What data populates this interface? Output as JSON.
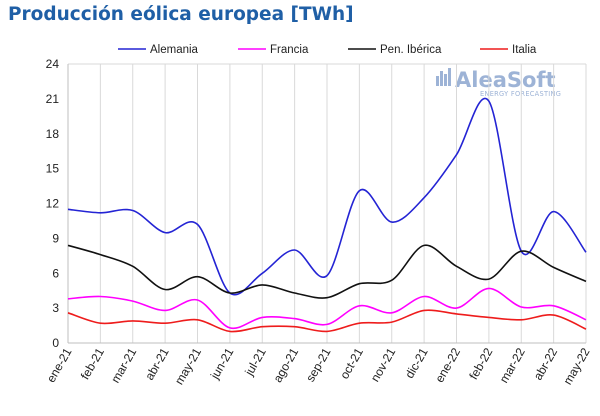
{
  "title": "Producción eólica europea [TWh]",
  "logo": {
    "name": "AleaSoft",
    "tagline": "ENERGY FORECASTING",
    "color": "#9db3d6"
  },
  "chart_data": {
    "type": "line",
    "title": "Producción eólica europea [TWh]",
    "xlabel": "",
    "ylabel": "",
    "ylim": [
      0,
      24
    ],
    "yticks": [
      0,
      3,
      6,
      9,
      12,
      15,
      18,
      21,
      24
    ],
    "grid": "vertical",
    "legend_position": "top",
    "categories": [
      "ene-21",
      "feb-21",
      "mar-21",
      "abr-21",
      "may-21",
      "jun-21",
      "jul-21",
      "ago-21",
      "sep-21",
      "oct-21",
      "nov-21",
      "dic-21",
      "ene-22",
      "feb-22",
      "mar-22",
      "abr-22",
      "may-22"
    ],
    "series": [
      {
        "name": "Alemania",
        "color": "#2424d4",
        "values": [
          11.5,
          11.2,
          11.4,
          9.5,
          10.2,
          4.3,
          6.0,
          8.0,
          5.8,
          13.1,
          10.4,
          12.5,
          16.2,
          20.8,
          7.9,
          11.3,
          7.8
        ]
      },
      {
        "name": "Francia",
        "color": "#ff00ff",
        "values": [
          3.8,
          4.0,
          3.6,
          2.8,
          3.7,
          1.3,
          2.2,
          2.1,
          1.6,
          3.2,
          2.6,
          4.0,
          3.0,
          4.7,
          3.1,
          3.2,
          2.0
        ]
      },
      {
        "name": "Pen. Ibérica",
        "color": "#111111",
        "values": [
          8.4,
          7.6,
          6.6,
          4.6,
          5.7,
          4.3,
          5.0,
          4.3,
          3.9,
          5.1,
          5.4,
          8.4,
          6.6,
          5.5,
          7.9,
          6.5,
          5.3
        ]
      },
      {
        "name": "Italia",
        "color": "#ee1c1c",
        "values": [
          2.6,
          1.7,
          1.9,
          1.7,
          2.0,
          1.0,
          1.4,
          1.4,
          1.0,
          1.7,
          1.8,
          2.8,
          2.5,
          2.2,
          2.0,
          2.4,
          1.2
        ]
      }
    ]
  }
}
